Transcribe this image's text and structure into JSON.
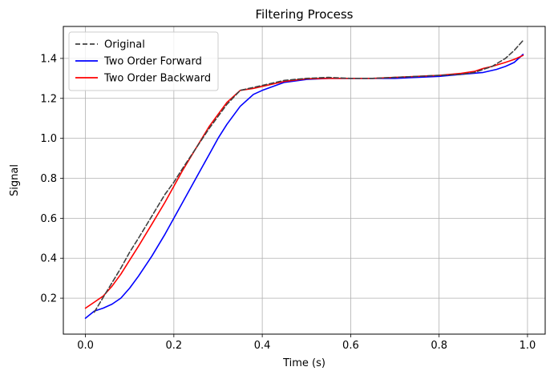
{
  "chart_data": {
    "type": "line",
    "title": "Filtering Process",
    "xlabel": "Time (s)",
    "ylabel": "Signal",
    "xlim": [
      -0.05,
      1.04
    ],
    "ylim": [
      0.02,
      1.56
    ],
    "xticks": [
      0.0,
      0.2,
      0.4,
      0.6,
      0.8,
      1.0
    ],
    "xtick_labels": [
      "0.0",
      "0.2",
      "0.4",
      "0.6",
      "0.8",
      "1.0"
    ],
    "yticks": [
      0.2,
      0.4,
      0.6,
      0.8,
      1.0,
      1.2,
      1.4
    ],
    "ytick_labels": [
      "0.2",
      "0.4",
      "0.6",
      "0.8",
      "1.0",
      "1.2",
      "1.4"
    ],
    "grid": true,
    "legend_position": "top-left",
    "series": [
      {
        "name": "Original",
        "color": "#404040",
        "dash": "dashed",
        "x": [
          0.02,
          0.05,
          0.08,
          0.1,
          0.12,
          0.15,
          0.18,
          0.2,
          0.22,
          0.25,
          0.28,
          0.3,
          0.32,
          0.35,
          0.38,
          0.4,
          0.45,
          0.5,
          0.55,
          0.6,
          0.65,
          0.7,
          0.75,
          0.8,
          0.85,
          0.88,
          0.9,
          0.92,
          0.95,
          0.97,
          0.99
        ],
        "y": [
          0.13,
          0.24,
          0.35,
          0.43,
          0.5,
          0.61,
          0.72,
          0.78,
          0.85,
          0.95,
          1.05,
          1.11,
          1.17,
          1.24,
          1.255,
          1.265,
          1.29,
          1.3,
          1.305,
          1.3,
          1.3,
          1.305,
          1.31,
          1.315,
          1.32,
          1.33,
          1.345,
          1.36,
          1.4,
          1.44,
          1.49
        ]
      },
      {
        "name": "Two Order Forward",
        "color": "#0000ff",
        "dash": "solid",
        "x": [
          0.0,
          0.02,
          0.04,
          0.06,
          0.08,
          0.1,
          0.12,
          0.15,
          0.18,
          0.2,
          0.22,
          0.25,
          0.28,
          0.3,
          0.32,
          0.35,
          0.38,
          0.4,
          0.45,
          0.5,
          0.55,
          0.6,
          0.65,
          0.7,
          0.75,
          0.8,
          0.85,
          0.9,
          0.93,
          0.95,
          0.97,
          0.99
        ],
        "y": [
          0.1,
          0.135,
          0.15,
          0.17,
          0.2,
          0.25,
          0.31,
          0.41,
          0.52,
          0.6,
          0.68,
          0.8,
          0.92,
          1.0,
          1.07,
          1.16,
          1.22,
          1.24,
          1.28,
          1.295,
          1.3,
          1.3,
          1.3,
          1.3,
          1.305,
          1.31,
          1.32,
          1.33,
          1.345,
          1.36,
          1.38,
          1.42
        ]
      },
      {
        "name": "Two Order Backward",
        "color": "#ff0000",
        "dash": "solid",
        "x": [
          0.0,
          0.02,
          0.04,
          0.06,
          0.08,
          0.1,
          0.12,
          0.15,
          0.18,
          0.2,
          0.22,
          0.25,
          0.28,
          0.3,
          0.32,
          0.35,
          0.38,
          0.4,
          0.45,
          0.5,
          0.55,
          0.6,
          0.65,
          0.7,
          0.75,
          0.8,
          0.85,
          0.88,
          0.9,
          0.92,
          0.95,
          0.97,
          0.99
        ],
        "y": [
          0.15,
          0.18,
          0.21,
          0.26,
          0.32,
          0.39,
          0.46,
          0.57,
          0.68,
          0.76,
          0.84,
          0.95,
          1.06,
          1.12,
          1.18,
          1.24,
          1.25,
          1.26,
          1.285,
          1.298,
          1.3,
          1.3,
          1.3,
          1.305,
          1.31,
          1.315,
          1.325,
          1.335,
          1.35,
          1.36,
          1.38,
          1.395,
          1.415
        ]
      }
    ]
  }
}
